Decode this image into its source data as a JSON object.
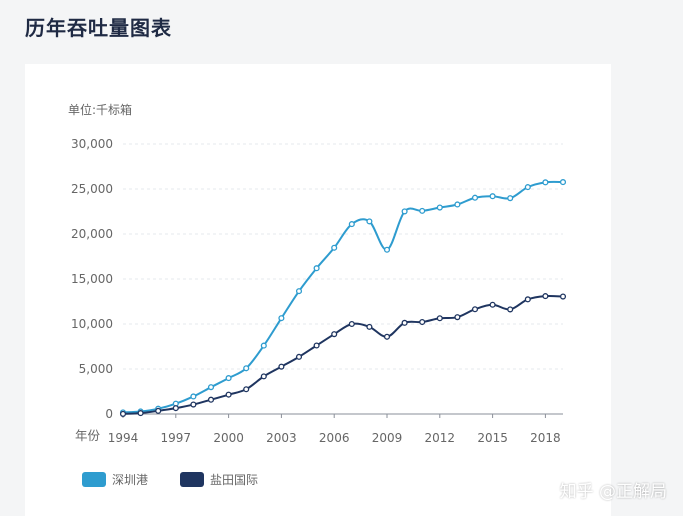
{
  "page": {
    "title": "历年吞吐量图表"
  },
  "watermark": "知乎 @正解局",
  "colors": {
    "shenzhen": "#2e9ccf",
    "yantian": "#1f3560",
    "grid": "#e6e9ee",
    "axis": "#8a8f99",
    "text": "#666666"
  },
  "chart_data": {
    "type": "line",
    "title": "",
    "unit_label": "单位:千标箱",
    "xlabel": "年份",
    "ylabel": "",
    "ylim": [
      0,
      30000
    ],
    "yticks": [
      "30,000",
      "25,000",
      "20,000",
      "15,000",
      "10,000",
      "5,000",
      "0"
    ],
    "ytick_values": [
      30000,
      25000,
      20000,
      15000,
      10000,
      5000,
      0
    ],
    "xticks": [
      "1994",
      "1997",
      "2000",
      "2003",
      "2006",
      "2009",
      "2012",
      "2015",
      "2018"
    ],
    "xtick_values": [
      1994,
      1997,
      2000,
      2003,
      2006,
      2009,
      2012,
      2015,
      2018
    ],
    "xlim": [
      1994,
      2019
    ],
    "grid": true,
    "legend": "bottom-left",
    "x": [
      1994,
      1995,
      1996,
      1997,
      1998,
      1999,
      2000,
      2001,
      2002,
      2003,
      2004,
      2005,
      2006,
      2007,
      2008,
      2009,
      2010,
      2011,
      2012,
      2013,
      2014,
      2015,
      2016,
      2017,
      2018,
      2019
    ],
    "series": [
      {
        "name": "深圳港",
        "color": "#2e9ccf",
        "values": [
          180,
          280,
          590,
          1150,
          1950,
          2980,
          3990,
          5080,
          7600,
          10650,
          13650,
          16200,
          18470,
          21100,
          21400,
          18250,
          22510,
          22570,
          22940,
          23280,
          24030,
          24200,
          23980,
          25210,
          25740,
          25770
        ]
      },
      {
        "name": "盐田国际",
        "color": "#1f3560",
        "values": [
          10,
          100,
          350,
          650,
          1050,
          1590,
          2150,
          2750,
          4180,
          5260,
          6350,
          7610,
          8870,
          10000,
          9680,
          8580,
          10130,
          10220,
          10640,
          10760,
          11640,
          12140,
          11620,
          12740,
          13100,
          13050
        ]
      }
    ]
  }
}
